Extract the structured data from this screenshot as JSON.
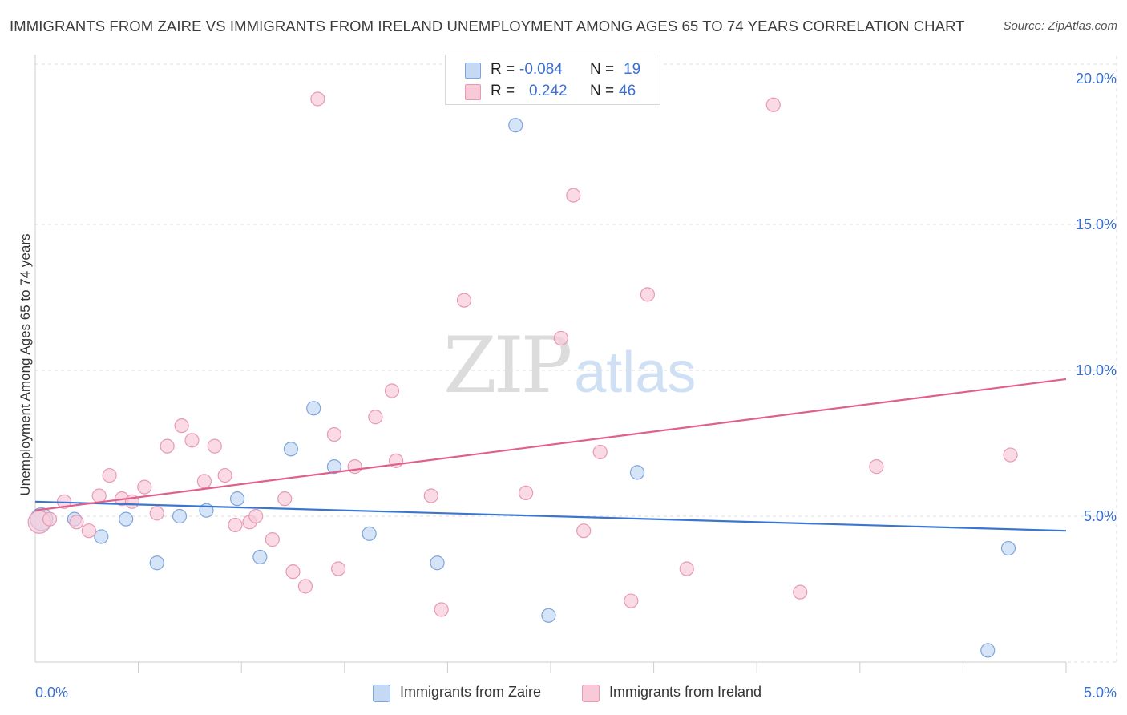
{
  "title": "IMMIGRANTS FROM ZAIRE VS IMMIGRANTS FROM IRELAND UNEMPLOYMENT AMONG AGES 65 TO 74 YEARS CORRELATION CHART",
  "source": "Source: ZipAtlas.com",
  "watermark": {
    "zip": "ZIP",
    "atlas": "atlas"
  },
  "legend_top": {
    "rows": [
      {
        "r_label": "R =",
        "r_value": "-0.084",
        "n_label": "N =",
        "n_value": "19"
      },
      {
        "r_label": "R =",
        "r_value": "0.242",
        "n_label": "N =",
        "n_value": "46"
      }
    ]
  },
  "legend_bottom": {
    "items": [
      {
        "label": "Immigrants from Zaire"
      },
      {
        "label": "Immigrants from Ireland"
      }
    ]
  },
  "colors": {
    "zaire_fill": "#c5d9f5",
    "zaire_stroke": "#7ea6dc",
    "zaire_line": "#3a76d0",
    "ireland_fill": "#f8cad8",
    "ireland_stroke": "#e89ab4",
    "ireland_line": "#e0608a",
    "axis_text": "#3b6fcf",
    "grid": "#dddddd"
  },
  "chart_data": {
    "type": "scatter",
    "title": "IMMIGRANTS FROM ZAIRE VS IMMIGRANTS FROM IRELAND UNEMPLOYMENT AMONG AGES 65 TO 74 YEARS CORRELATION CHART",
    "xlabel": "",
    "ylabel": "Unemployment Among Ages 65 to 74 years",
    "xlim": [
      0,
      5
    ],
    "ylim": [
      0,
      20
    ],
    "x_tick_labels": [
      {
        "value": 0,
        "label": "0.0%"
      },
      {
        "value": 5,
        "label": "5.0%"
      }
    ],
    "y_tick_labels": [
      {
        "value": 5,
        "label": "5.0%"
      },
      {
        "value": 10,
        "label": "10.0%"
      },
      {
        "value": 15,
        "label": "15.0%"
      },
      {
        "value": 20,
        "label": "20.0%"
      }
    ],
    "x_minor_ticks": [
      0.5,
      1.0,
      1.5,
      2.0,
      2.5,
      3.0,
      3.5,
      4.0,
      4.5,
      5.0
    ],
    "grid": true,
    "series": [
      {
        "name": "Immigrants from Zaire",
        "color_key": "zaire",
        "trend": {
          "x": [
            0,
            5
          ],
          "y": [
            5.5,
            4.5
          ]
        },
        "points": [
          [
            0.03,
            4.9
          ],
          [
            0.19,
            4.9
          ],
          [
            0.32,
            4.3
          ],
          [
            0.44,
            4.9
          ],
          [
            0.59,
            3.4
          ],
          [
            0.7,
            5.0
          ],
          [
            0.83,
            5.2
          ],
          [
            0.98,
            5.6
          ],
          [
            1.09,
            3.6
          ],
          [
            1.24,
            7.3
          ],
          [
            1.35,
            8.7
          ],
          [
            1.45,
            6.7
          ],
          [
            1.62,
            4.4
          ],
          [
            1.95,
            3.4
          ],
          [
            2.33,
            18.4
          ],
          [
            2.49,
            1.6
          ],
          [
            2.92,
            6.5
          ],
          [
            4.62,
            0.4
          ],
          [
            4.72,
            3.9
          ]
        ]
      },
      {
        "name": "Immigrants from Ireland",
        "color_key": "ireland",
        "trend": {
          "x": [
            0,
            5
          ],
          "y": [
            5.2,
            9.7
          ]
        },
        "points": [
          [
            0.02,
            4.8
          ],
          [
            0.07,
            4.9
          ],
          [
            0.14,
            5.5
          ],
          [
            0.2,
            4.8
          ],
          [
            0.26,
            4.5
          ],
          [
            0.31,
            5.7
          ],
          [
            0.36,
            6.4
          ],
          [
            0.42,
            5.6
          ],
          [
            0.47,
            5.5
          ],
          [
            0.53,
            6.0
          ],
          [
            0.59,
            5.1
          ],
          [
            0.64,
            7.4
          ],
          [
            0.71,
            8.1
          ],
          [
            0.76,
            7.6
          ],
          [
            0.82,
            6.2
          ],
          [
            0.87,
            7.4
          ],
          [
            0.92,
            6.4
          ],
          [
            0.97,
            4.7
          ],
          [
            1.04,
            4.8
          ],
          [
            1.07,
            5.0
          ],
          [
            1.15,
            4.2
          ],
          [
            1.21,
            5.6
          ],
          [
            1.25,
            3.1
          ],
          [
            1.31,
            2.6
          ],
          [
            1.37,
            19.3
          ],
          [
            1.45,
            7.8
          ],
          [
            1.47,
            3.2
          ],
          [
            1.55,
            6.7
          ],
          [
            1.65,
            8.4
          ],
          [
            1.73,
            9.3
          ],
          [
            1.75,
            6.9
          ],
          [
            1.92,
            5.7
          ],
          [
            1.97,
            1.8
          ],
          [
            2.08,
            12.4
          ],
          [
            2.38,
            5.8
          ],
          [
            2.55,
            11.1
          ],
          [
            2.61,
            16.0
          ],
          [
            2.66,
            4.5
          ],
          [
            2.74,
            7.2
          ],
          [
            2.89,
            2.1
          ],
          [
            2.97,
            12.6
          ],
          [
            3.16,
            3.2
          ],
          [
            3.58,
            19.1
          ],
          [
            3.71,
            2.4
          ],
          [
            4.08,
            6.7
          ],
          [
            4.73,
            7.1
          ]
        ]
      }
    ]
  }
}
